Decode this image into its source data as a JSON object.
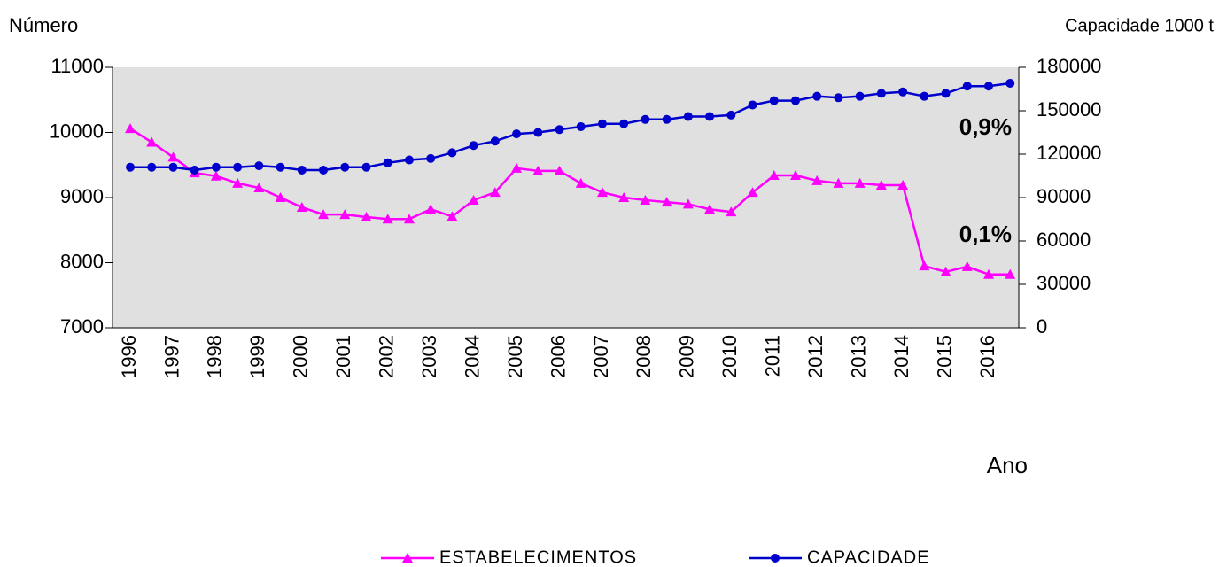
{
  "chart_data": {
    "type": "line",
    "y_label": "Número",
    "y2_label": "Capacidade 1000 t",
    "x_label": "Ano",
    "annotations": [
      "0,9%",
      "0,1%"
    ],
    "categories": [
      "1996",
      null,
      "1997",
      null,
      "1998",
      null,
      "1999",
      null,
      "2000",
      null,
      "2001",
      null,
      "2002",
      null,
      "2003",
      null,
      "2004",
      null,
      "2005",
      null,
      "2006",
      null,
      "2007",
      null,
      "2008",
      null,
      "2009",
      null,
      "2010",
      null,
      "2011",
      null,
      "2012",
      null,
      "2013",
      null,
      "2014",
      null,
      "2015",
      null,
      "2016",
      null
    ],
    "series": [
      {
        "name": "ESTABELECIMENTOS",
        "color": "#ff00ff",
        "marker": "triangle",
        "values": [
          10060,
          9850,
          9620,
          9380,
          9330,
          9220,
          9150,
          9000,
          8850,
          8740,
          8740,
          8700,
          8670,
          8670,
          8820,
          8710,
          8960,
          9080,
          9450,
          9410,
          9410,
          9220,
          9080,
          9000,
          8960,
          8930,
          8900,
          8820,
          8780,
          9080,
          9340,
          9340,
          9260,
          9220,
          9220,
          9190,
          9190,
          7950,
          7860,
          7940,
          7820,
          7820
        ]
      },
      {
        "name": "CAPACIDADE",
        "color": "#0000cc",
        "marker": "circle",
        "axis": "y2",
        "values": [
          111000,
          111000,
          111000,
          109000,
          111000,
          111000,
          112000,
          111000,
          109000,
          109000,
          111000,
          111000,
          114000,
          116000,
          117000,
          121000,
          126000,
          129000,
          134000,
          135000,
          137000,
          139000,
          141000,
          141000,
          144000,
          144000,
          146000,
          146000,
          147000,
          154000,
          157000,
          157000,
          160000,
          159000,
          160000,
          162000,
          163000,
          160000,
          162000,
          167000,
          167000,
          169000
        ]
      }
    ],
    "ylim": [
      7000,
      11000
    ],
    "yticks": [
      7000,
      8000,
      9000,
      10000,
      11000
    ],
    "y2lim": [
      0,
      180000
    ],
    "y2ticks": [
      0,
      30000,
      60000,
      90000,
      120000,
      150000,
      180000
    ],
    "plot_background": "#e0e0e0",
    "legend": "bottom"
  }
}
